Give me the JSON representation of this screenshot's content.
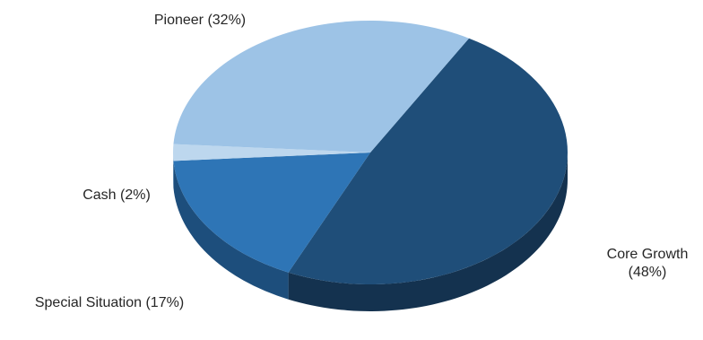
{
  "chart_data": {
    "type": "pie",
    "style": "3d",
    "title": "",
    "slices": [
      {
        "label": "Core Growth",
        "value": 48,
        "display_label_lines": [
          "Core Growth",
          "(48%)"
        ],
        "color": "#1f4e79",
        "side_color": "#14324f"
      },
      {
        "label": "Special Situation",
        "value": 17,
        "display_label_lines": [
          "Special Situation (17%)"
        ],
        "color": "#2e75b6",
        "side_color": "#1d4e7c"
      },
      {
        "label": "Cash",
        "value": 2,
        "display_label_lines": [
          "Cash (2%)"
        ],
        "color": "#bdd7ee",
        "side_color": "#8fb3d3"
      },
      {
        "label": "Pioneer",
        "value": 32,
        "display_label_lines": [
          "Pioneer (32%)"
        ],
        "color": "#9dc3e6",
        "side_color": "#6f98bf"
      }
    ],
    "legend": "none"
  }
}
